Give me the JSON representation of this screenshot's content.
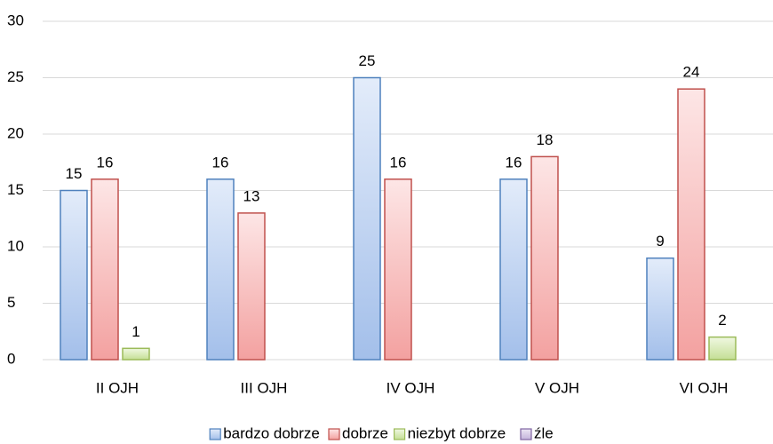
{
  "chart_data": {
    "type": "bar",
    "categories": [
      "II OJH",
      "III OJH",
      "IV OJH",
      "V OJH",
      "VI OJH"
    ],
    "series": [
      {
        "name": "bardzo dobrze",
        "color": "#4f81bd",
        "gradient": [
          "#e3ecfa",
          "#a3bfea"
        ],
        "values": [
          15,
          16,
          25,
          16,
          9
        ]
      },
      {
        "name": "dobrze",
        "color": "#c0504d",
        "gradient": [
          "#fde6e6",
          "#f3a1a0"
        ],
        "values": [
          16,
          13,
          16,
          18,
          24
        ]
      },
      {
        "name": "niezbyt dobrze",
        "color": "#9bbb59",
        "gradient": [
          "#f0f8e2",
          "#c4df95"
        ],
        "values": [
          1,
          null,
          null,
          null,
          2
        ]
      },
      {
        "name": "źle",
        "color": "#8064a2",
        "gradient": [
          "#ece6f4",
          "#c3b3da"
        ],
        "values": [
          null,
          null,
          null,
          null,
          null
        ]
      }
    ],
    "ylim": [
      0,
      30
    ],
    "yticks": [
      0,
      5,
      10,
      15,
      20,
      25,
      30
    ],
    "grid": true,
    "legend": "bottom"
  }
}
